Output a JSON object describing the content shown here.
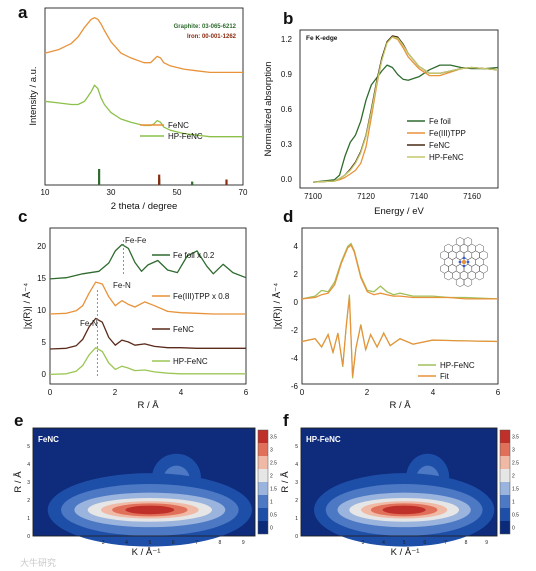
{
  "panel_letters": [
    "a",
    "b",
    "c",
    "d",
    "e",
    "f"
  ],
  "watermark": "大牛研究",
  "chart_data": [
    {
      "panel": "a",
      "type": "line",
      "xlabel": "2 theta / degree",
      "ylabel": "Intensity / a.u.",
      "xlim": [
        10,
        70
      ],
      "xticks": [
        "10",
        "30",
        "50",
        "70"
      ],
      "reference_labels": [
        "Graphite: 03-065-6212",
        "Iron: 00-001-1262"
      ],
      "reference_colors": [
        "#2e6b2e",
        "#8b2a0f"
      ],
      "reference_sticks": [
        {
          "name": "Graphite",
          "x": [
            26.4,
            44.6,
            54.6
          ],
          "heights": [
            1.0,
            0.3,
            0.1
          ]
        },
        {
          "name": "Iron",
          "x": [
            44.6,
            65.0
          ],
          "heights": [
            0.6,
            0.25
          ]
        }
      ],
      "series": [
        {
          "name": "FeNC",
          "color": "#e8923a",
          "x": [
            10,
            14,
            18,
            20,
            22,
            24,
            25,
            26,
            27,
            28,
            30,
            33,
            36,
            40,
            42,
            43,
            44,
            45,
            46,
            48,
            52,
            56,
            60,
            65,
            70
          ],
          "y": [
            0.82,
            0.84,
            0.88,
            0.92,
            0.98,
            1.03,
            1.04,
            1.03,
            1.0,
            0.96,
            0.89,
            0.82,
            0.79,
            0.76,
            0.76,
            0.78,
            0.8,
            0.79,
            0.76,
            0.74,
            0.72,
            0.71,
            0.7,
            0.7,
            0.7
          ]
        },
        {
          "name": "HP-FeNC",
          "color": "#8cc04a",
          "x": [
            10,
            14,
            18,
            20,
            22,
            24,
            25,
            26,
            27,
            28,
            30,
            33,
            36,
            40,
            42,
            43,
            44,
            45,
            46,
            48,
            52,
            56,
            60,
            65,
            70
          ],
          "y": [
            0.52,
            0.51,
            0.5,
            0.5,
            0.52,
            0.58,
            0.62,
            0.6,
            0.54,
            0.5,
            0.45,
            0.41,
            0.39,
            0.37,
            0.37,
            0.38,
            0.4,
            0.39,
            0.36,
            0.34,
            0.32,
            0.31,
            0.3,
            0.3,
            0.3
          ]
        }
      ]
    },
    {
      "panel": "b",
      "type": "line",
      "title": "Fe K-edge",
      "xlabel": "Energy / eV",
      "ylabel": "Normalized absorption",
      "xlim": [
        7095,
        7170
      ],
      "ylim": [
        -0.05,
        1.3
      ],
      "xticks": [
        "7100",
        "7120",
        "7140",
        "7160"
      ],
      "yticks": [
        "0.0",
        "0.3",
        "0.6",
        "0.9",
        "1.2"
      ],
      "series": [
        {
          "name": "Fe foil",
          "color": "#2f6b2f",
          "x": [
            7100,
            7108,
            7110,
            7112,
            7114,
            7116,
            7118,
            7120,
            7122,
            7124,
            7126,
            7128,
            7130,
            7132,
            7134,
            7136,
            7140,
            7144,
            7148,
            7152,
            7156,
            7160,
            7165,
            7170
          ],
          "y": [
            0.0,
            0.02,
            0.06,
            0.22,
            0.34,
            0.4,
            0.52,
            0.7,
            0.83,
            0.89,
            0.95,
            1.0,
            0.98,
            0.92,
            0.88,
            0.87,
            0.9,
            0.96,
            1.0,
            1.0,
            0.98,
            0.97,
            0.97,
            0.98
          ]
        },
        {
          "name": "Fe(III)TPP",
          "color": "#e8923a",
          "x": [
            7100,
            7108,
            7110,
            7112,
            7114,
            7116,
            7118,
            7120,
            7122,
            7124,
            7126,
            7128,
            7130,
            7132,
            7134,
            7136,
            7140,
            7144,
            7148,
            7152,
            7156,
            7160,
            7165,
            7170
          ],
          "y": [
            0.0,
            0.01,
            0.02,
            0.04,
            0.07,
            0.1,
            0.16,
            0.3,
            0.55,
            0.82,
            1.05,
            1.2,
            1.24,
            1.22,
            1.15,
            1.07,
            0.97,
            0.91,
            0.91,
            0.94,
            0.97,
            0.98,
            0.97,
            0.96
          ]
        },
        {
          "name": "FeNC",
          "color": "#4a2a16",
          "x": [
            7100,
            7108,
            7110,
            7112,
            7114,
            7116,
            7118,
            7120,
            7122,
            7124,
            7126,
            7128,
            7130,
            7132,
            7134,
            7136,
            7140,
            7144,
            7148,
            7152,
            7156,
            7160,
            7165,
            7170
          ],
          "y": [
            0.0,
            0.01,
            0.03,
            0.06,
            0.11,
            0.17,
            0.26,
            0.4,
            0.62,
            0.86,
            1.06,
            1.2,
            1.25,
            1.24,
            1.18,
            1.1,
            0.99,
            0.93,
            0.93,
            0.95,
            0.97,
            0.98,
            0.97,
            0.96
          ]
        },
        {
          "name": "HP-FeNC",
          "color": "#c3c96a",
          "x": [
            7100,
            7108,
            7110,
            7112,
            7114,
            7116,
            7118,
            7120,
            7122,
            7124,
            7126,
            7128,
            7130,
            7132,
            7134,
            7136,
            7140,
            7144,
            7148,
            7152,
            7156,
            7160,
            7165,
            7170
          ],
          "y": [
            0.0,
            0.01,
            0.03,
            0.06,
            0.1,
            0.16,
            0.25,
            0.39,
            0.6,
            0.84,
            1.04,
            1.19,
            1.24,
            1.23,
            1.17,
            1.1,
            0.99,
            0.93,
            0.93,
            0.95,
            0.97,
            0.98,
            0.97,
            0.96
          ]
        }
      ]
    },
    {
      "panel": "c",
      "type": "line",
      "xlabel": "R / Å",
      "ylabel": "|χ(R)| / Å⁻⁴",
      "xlim": [
        0,
        6
      ],
      "ylim": [
        -1.5,
        23
      ],
      "xticks": [
        "0",
        "2",
        "4",
        "6"
      ],
      "yticks": [
        "0",
        "5",
        "10",
        "15",
        "20"
      ],
      "annotations": [
        "Fe-Fe",
        "Fe-N",
        "Fe-N"
      ],
      "series": [
        {
          "name": "Fe foil x 0.2",
          "color": "#2f6b2f",
          "x": [
            0,
            0.5,
            1.0,
            1.5,
            1.8,
            2.0,
            2.2,
            2.4,
            2.6,
            2.8,
            3.0,
            3.3,
            3.6,
            3.9,
            4.2,
            4.5,
            4.8,
            5.0,
            5.3,
            5.6,
            6.0
          ],
          "y": [
            15,
            15.2,
            15.8,
            16.2,
            17.5,
            19.4,
            20.4,
            19.8,
            17.6,
            16.2,
            17.2,
            17.9,
            16.4,
            16.0,
            18.6,
            19.4,
            17.0,
            15.8,
            17.3,
            16.0,
            15.2
          ]
        },
        {
          "name": "Fe(III)TPP x 0.8",
          "color": "#e8923a",
          "x": [
            0,
            0.5,
            0.8,
            1.0,
            1.2,
            1.4,
            1.6,
            1.8,
            2.0,
            2.2,
            2.4,
            2.6,
            2.9,
            3.2,
            3.6,
            4.0,
            4.5,
            5.0,
            5.5,
            6.0
          ],
          "y": [
            9.5,
            9.6,
            10.0,
            10.8,
            12.8,
            14.5,
            14.2,
            12.2,
            10.8,
            11.6,
            11.0,
            10.6,
            11.4,
            10.8,
            9.9,
            9.7,
            9.6,
            9.5,
            9.5,
            9.5
          ]
        },
        {
          "name": "FeNC",
          "color": "#5a2a1a",
          "x": [
            0,
            0.5,
            0.8,
            1.0,
            1.2,
            1.4,
            1.6,
            1.8,
            2.0,
            2.2,
            2.4,
            2.6,
            2.9,
            3.2,
            3.6,
            4.0,
            4.5,
            5.0,
            5.5,
            6.0
          ],
          "y": [
            4.0,
            4.1,
            4.5,
            5.5,
            7.5,
            8.8,
            8.2,
            5.8,
            4.6,
            5.4,
            5.1,
            4.6,
            4.8,
            4.4,
            4.2,
            4.2,
            4.1,
            4.1,
            4.1,
            4.1
          ]
        },
        {
          "name": "HP-FeNC",
          "color": "#9cc655",
          "x": [
            0,
            0.5,
            0.8,
            1.0,
            1.2,
            1.4,
            1.6,
            1.8,
            2.0,
            2.2,
            2.4,
            2.6,
            2.9,
            3.2,
            3.6,
            4.0,
            4.5,
            5.0,
            5.5,
            6.0
          ],
          "y": [
            0.0,
            0.1,
            0.5,
            1.4,
            3.1,
            4.2,
            3.6,
            1.8,
            0.8,
            1.3,
            1.0,
            0.6,
            0.7,
            0.4,
            0.2,
            0.1,
            0.1,
            0.1,
            0.1,
            0.1
          ]
        }
      ]
    },
    {
      "panel": "d",
      "type": "line",
      "xlabel": "R / Å",
      "ylabel": "|χ(R)| / Å⁻⁴",
      "xlim": [
        0,
        6
      ],
      "ylim": [
        -6,
        5
      ],
      "xticks": [
        "0",
        "2",
        "4",
        "6"
      ],
      "yticks": [
        "-6",
        "-4",
        "-2",
        "0",
        "2",
        "4"
      ],
      "series": [
        {
          "name": "HP-FeNC",
          "color": "#a0c05a",
          "x": [
            0,
            0.4,
            0.6,
            0.8,
            1.0,
            1.2,
            1.4,
            1.5,
            1.6,
            1.8,
            2.0,
            2.2,
            2.4,
            2.6,
            2.8,
            3.0,
            3.4,
            4.0,
            4.5,
            5.0,
            6.0
          ],
          "y": [
            0.0,
            0.2,
            0.6,
            0.5,
            1.2,
            2.6,
            3.7,
            3.9,
            3.4,
            1.6,
            0.6,
            0.5,
            0.9,
            0.5,
            0.3,
            0.4,
            0.2,
            0.2,
            0.1,
            0.1,
            0.0
          ]
        },
        {
          "name": "Fit",
          "color": "#e8923a",
          "x": [
            0,
            0.4,
            0.6,
            0.8,
            1.0,
            1.2,
            1.4,
            1.5,
            1.6,
            1.8,
            2.0,
            2.2,
            2.4,
            2.6,
            2.8,
            3.0,
            3.4,
            4.0,
            4.5,
            5.0,
            6.0
          ],
          "y": [
            0.0,
            0.1,
            0.3,
            0.4,
            1.0,
            2.5,
            3.6,
            3.8,
            3.3,
            1.5,
            0.5,
            0.3,
            0.4,
            0.3,
            0.2,
            0.2,
            0.1,
            0.1,
            0.1,
            0.0,
            0.0
          ]
        }
      ]
    },
    {
      "panel": "e",
      "type": "heatmap",
      "title": "FeNC",
      "xlabel": "K / Å⁻¹",
      "ylabel": "R / Å",
      "xticks": [
        "0",
        "1",
        "2",
        "3",
        "4",
        "5",
        "6",
        "7",
        "8",
        "9"
      ],
      "yticks": [
        "0",
        "1",
        "2",
        "3",
        "4",
        "5"
      ],
      "colorbar_ticks": [
        "0",
        "0.5",
        "1",
        "1.5",
        "2",
        "2.5",
        "3",
        "3.5"
      ],
      "colorbar_colors": [
        "#0b2a7a",
        "#1e4fa8",
        "#4c78c4",
        "#9ab4de",
        "#e6e6e6",
        "#f0b9a5",
        "#e0705a",
        "#c0302a"
      ],
      "peak_center": {
        "k": 5.0,
        "r": 1.45
      }
    },
    {
      "panel": "f",
      "type": "heatmap",
      "title": "HP-FeNC",
      "xlabel": "K / Å⁻¹",
      "ylabel": "R / Å",
      "xticks": [
        "0",
        "1",
        "2",
        "3",
        "4",
        "5",
        "6",
        "7",
        "8",
        "9"
      ],
      "yticks": [
        "0",
        "1",
        "2",
        "3",
        "4",
        "5"
      ],
      "colorbar_ticks": [
        "0",
        "0.5",
        "1",
        "1.5",
        "2",
        "2.5",
        "3",
        "3.5"
      ],
      "colorbar_colors": [
        "#0b2a7a",
        "#1e4fa8",
        "#4c78c4",
        "#9ab4de",
        "#e6e6e6",
        "#f0b9a5",
        "#e0705a",
        "#c0302a"
      ],
      "peak_center": {
        "k": 5.0,
        "r": 1.45
      }
    }
  ]
}
